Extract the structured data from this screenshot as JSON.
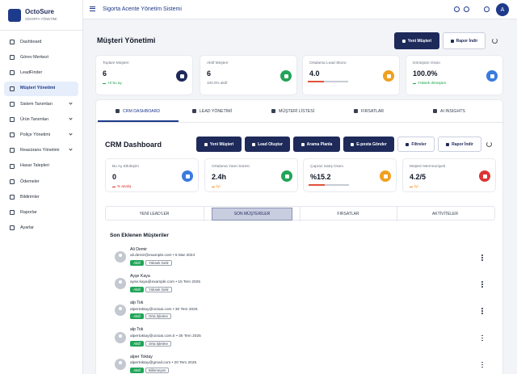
{
  "sidebar": {
    "brand": "OctoSure",
    "tagline": "SİGORTA YÖNETİMİ",
    "active_index": 3,
    "menu": [
      {
        "label": "Dashboard",
        "expandable": false
      },
      {
        "label": "Görev Merkezi",
        "expandable": false
      },
      {
        "label": "LeadFinder",
        "expandable": false
      },
      {
        "label": "Müşteri Yönetimi",
        "expandable": false
      },
      {
        "label": "Sistem Tanımları",
        "expandable": true
      },
      {
        "label": "Ürün Tanımları",
        "expandable": true
      },
      {
        "label": "Poliçe Yönetimi",
        "expandable": true
      },
      {
        "label": "Reasürans Yönetimi",
        "expandable": true
      },
      {
        "label": "Hasar Talepleri",
        "expandable": false
      },
      {
        "label": "Ödemeler",
        "expandable": false
      },
      {
        "label": "Bildirimler",
        "expandable": false
      },
      {
        "label": "Raporlar",
        "expandable": false
      },
      {
        "label": "Ayarlar",
        "expandable": false
      }
    ]
  },
  "topbar": {
    "title": "Sigorta Acente Yönetim Sistemi",
    "avatar": "A"
  },
  "page": {
    "title": "Müşteri Yönetimi",
    "actions": [
      "Yeni Müşteri",
      "Rapor İndir"
    ]
  },
  "stats": [
    {
      "label": "Toplam Müşteri",
      "value": "6",
      "note": "+0 bu ay",
      "tone": "#16a34a",
      "icon_color": "#1e2a5a"
    },
    {
      "label": "Aktif Müşteri",
      "value": "6",
      "note": "100.0% aktif",
      "tone": "#6b7280",
      "icon_color": "#22a559"
    },
    {
      "label": "Ortalama Lead Skoru",
      "value": "4.0",
      "note": null,
      "tone": "#6b7280",
      "icon_color": "#f0a020"
    },
    {
      "label": "Dönüşüm Oranı",
      "value": "100.0%",
      "note": "Yüksek dönüşüm",
      "tone": "#16a34a",
      "icon_color": "#3b7be0"
    }
  ],
  "tabs": {
    "active_index": 0,
    "items": [
      "CRM DASHBOARD",
      "LEAD YÖNETİMİ",
      "MÜŞTERİ LİSTESİ",
      "FIRSATLAR",
      "AI INSIGHTS"
    ]
  },
  "dashboard": {
    "title": "CRM Dashboard",
    "actions": [
      "Yeni Müşteri",
      "Lead Oluştur",
      "Arama Planla",
      "E-posta Gönder",
      "Filtreler",
      "Rapor İndir"
    ],
    "stats": [
      {
        "label": "Bu Ay Etkileşim",
        "value": "0",
        "note": "% azalış",
        "tone": "#dc2626",
        "icon_color": "#3b7be0"
      },
      {
        "label": "Ortalama Yanıt Süresi",
        "value": "2.4h",
        "note": "İyi",
        "tone": "#f08a20",
        "icon_color": "#22a559"
      },
      {
        "label": "Çapraz Satış Oranı",
        "value": "%15.2",
        "note": null,
        "tone": "#6b7280",
        "icon_color": "#f0a020"
      },
      {
        "label": "Müşteri Memnuniyeti",
        "value": "4.2/5",
        "note": "İyi",
        "tone": "#f08a20",
        "icon_color": "#dc3535"
      }
    ],
    "subtabs": {
      "active_index": 1,
      "items": [
        "YENİ LEAD'LER",
        "SON MÜŞTERİLER",
        "FIRSATLAR",
        "AKTİVİTELER"
      ]
    },
    "list": {
      "title": "Son Eklenen Müşteriler",
      "customers": [
        {
          "name": "Ali Demir",
          "meta": "ali.demir@example.com • 5 Mar 2024",
          "status": "Aktif",
          "segment": "Yüksek Gelir"
        },
        {
          "name": "Ayşe Kaya",
          "meta": "ayse.kaya@example.com • 15 Tem 2025",
          "status": "Aktif",
          "segment": "Yüksek Gelir"
        },
        {
          "name": "alp Tok",
          "meta": "alpertoktay@octoai.com • 30 Tem 2025",
          "status": "Aktif",
          "segment": "Orta İşletme"
        },
        {
          "name": "alp Tok",
          "meta": "alpertoktay@octoai.com.tr • 30 Tem 2025",
          "status": "Aktif",
          "segment": "Orta İşletme"
        },
        {
          "name": "alper Toktay",
          "meta": "alpertoktay@gmail.com • 20 Tem 2025",
          "status": "Aktif",
          "segment": "Bilinmeyen"
        }
      ]
    }
  }
}
